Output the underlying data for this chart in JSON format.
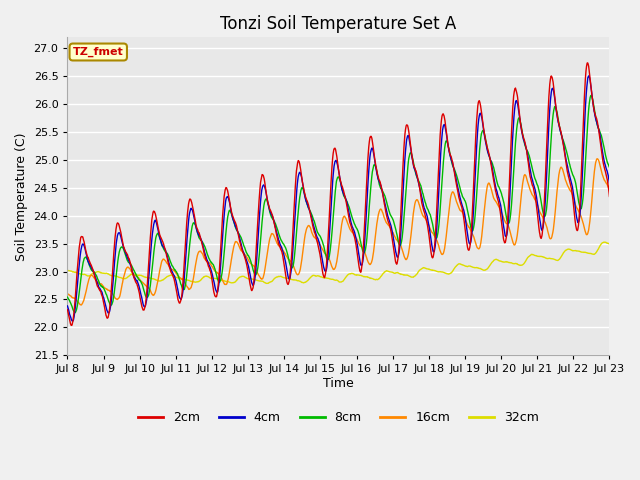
{
  "title": "Tonzi Soil Temperature Set A",
  "ylabel": "Soil Temperature (C)",
  "xlabel": "Time",
  "ylim": [
    21.5,
    27.2
  ],
  "xlim": [
    0,
    15
  ],
  "xtick_positions": [
    0,
    1,
    2,
    3,
    4,
    5,
    6,
    7,
    8,
    9,
    10,
    11,
    12,
    13,
    14,
    15
  ],
  "xtick_labels": [
    "Jul 8",
    "Jul 9",
    "Jul 10",
    "Jul 11",
    "Jul 12",
    "Jul 13",
    "Jul 14",
    "Jul 15",
    "Jul 16",
    "Jul 17",
    "Jul 18",
    "Jul 19",
    "Jul 20",
    "Jul 21",
    "Jul 22",
    "Jul 23"
  ],
  "line_colors": [
    "#dd0000",
    "#0000cc",
    "#00bb00",
    "#ff8800",
    "#dddd00"
  ],
  "line_labels": [
    "2cm",
    "4cm",
    "8cm",
    "16cm",
    "32cm"
  ],
  "annotation_text": "TZ_fmet",
  "annotation_bg": "#ffffcc",
  "annotation_border": "#aa8800",
  "fig_bg": "#f0f0f0",
  "plot_bg": "#e8e8e8",
  "grid_color": "#ffffff",
  "title_fontsize": 12,
  "label_fontsize": 9,
  "tick_fontsize": 8
}
